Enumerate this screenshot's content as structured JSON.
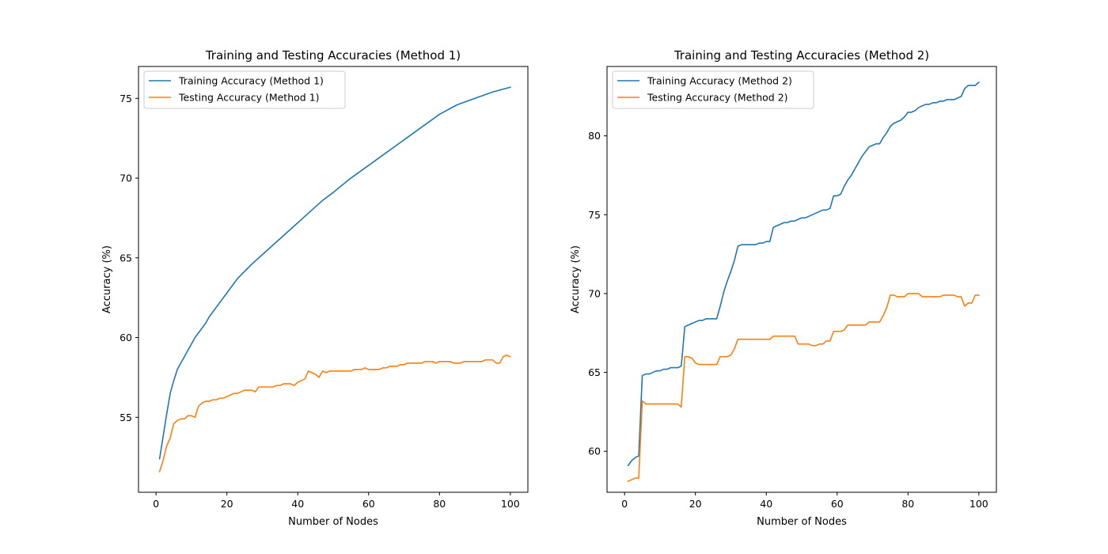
{
  "chart_data": [
    {
      "type": "line",
      "title": "Training and Testing Accuracies (Method 1)",
      "xlabel": "Number of Nodes",
      "ylabel": "Accuracy (%)",
      "xlim": [
        -4.95,
        104.95
      ],
      "ylim": [
        50.3,
        77.0
      ],
      "xticks": [
        0,
        20,
        40,
        60,
        80,
        100
      ],
      "yticks": [
        55,
        60,
        65,
        70,
        75
      ],
      "legend_position": "top-left",
      "series": [
        {
          "name": "Training Accuracy (Method 1)",
          "color": "#1f77b4",
          "x": [
            1,
            2,
            3,
            4,
            5,
            6,
            7,
            8,
            9,
            10,
            11,
            12,
            13,
            14,
            15,
            17,
            20,
            23,
            27,
            30,
            35,
            40,
            45,
            47,
            50,
            55,
            60,
            65,
            70,
            75,
            80,
            85,
            90,
            95,
            100
          ],
          "y": [
            52.4,
            53.8,
            55.2,
            56.5,
            57.3,
            58.0,
            58.4,
            58.8,
            59.2,
            59.6,
            60.0,
            60.3,
            60.6,
            60.9,
            61.3,
            61.9,
            62.8,
            63.7,
            64.6,
            65.2,
            66.2,
            67.2,
            68.2,
            68.6,
            69.1,
            70.0,
            70.8,
            71.6,
            72.4,
            73.2,
            74.0,
            74.6,
            75.0,
            75.4,
            75.7
          ]
        },
        {
          "name": "Testing Accuracy (Method 1)",
          "color": "#ff7f0e",
          "x": [
            1,
            2,
            3,
            4,
            5,
            6,
            7,
            8,
            9,
            10,
            11,
            12,
            13,
            14,
            15,
            16,
            17,
            18,
            19,
            20,
            21,
            22,
            23,
            24,
            25,
            26,
            27,
            28,
            29,
            30,
            31,
            32,
            33,
            34,
            35,
            36,
            37,
            38,
            39,
            40,
            41,
            42,
            43,
            44,
            45,
            46,
            47,
            48,
            49,
            50,
            51,
            52,
            53,
            54,
            55,
            56,
            57,
            58,
            59,
            60,
            61,
            62,
            63,
            64,
            65,
            66,
            67,
            68,
            69,
            70,
            71,
            72,
            73,
            74,
            75,
            76,
            77,
            78,
            79,
            80,
            81,
            82,
            83,
            84,
            85,
            86,
            87,
            88,
            89,
            90,
            91,
            92,
            93,
            94,
            95,
            96,
            97,
            98,
            99,
            100
          ],
          "y": [
            51.6,
            52.3,
            53.2,
            53.7,
            54.6,
            54.8,
            54.9,
            54.9,
            55.1,
            55.1,
            55.0,
            55.7,
            55.9,
            56.0,
            56.0,
            56.1,
            56.1,
            56.2,
            56.2,
            56.3,
            56.4,
            56.5,
            56.5,
            56.6,
            56.7,
            56.7,
            56.7,
            56.6,
            56.9,
            56.9,
            56.9,
            56.9,
            56.9,
            57.0,
            57.0,
            57.1,
            57.1,
            57.1,
            57.0,
            57.2,
            57.3,
            57.4,
            57.9,
            57.8,
            57.7,
            57.5,
            57.9,
            57.8,
            57.9,
            57.9,
            57.9,
            57.9,
            57.9,
            57.9,
            57.9,
            58.0,
            58.0,
            58.0,
            58.1,
            58.0,
            58.0,
            58.0,
            58.0,
            58.1,
            58.1,
            58.2,
            58.2,
            58.2,
            58.3,
            58.3,
            58.4,
            58.4,
            58.4,
            58.4,
            58.4,
            58.5,
            58.5,
            58.5,
            58.4,
            58.5,
            58.5,
            58.5,
            58.5,
            58.4,
            58.4,
            58.4,
            58.5,
            58.5,
            58.5,
            58.5,
            58.5,
            58.5,
            58.6,
            58.6,
            58.6,
            58.4,
            58.4,
            58.8,
            58.9,
            58.8
          ]
        }
      ]
    },
    {
      "type": "line",
      "title": "Training and Testing Accuracies (Method 2)",
      "xlabel": "Number of Nodes",
      "ylabel": "Accuracy (%)",
      "xlim": [
        -4.95,
        104.95
      ],
      "ylim": [
        57.4,
        84.4
      ],
      "xticks": [
        0,
        20,
        40,
        60,
        80,
        100
      ],
      "yticks": [
        60,
        65,
        70,
        75,
        80
      ],
      "legend_position": "top-left",
      "series": [
        {
          "name": "Training Accuracy (Method 2)",
          "color": "#1f77b4",
          "x": [
            1,
            2,
            3,
            4,
            5,
            6,
            7,
            8,
            9,
            10,
            11,
            12,
            13,
            14,
            15,
            16,
            17,
            18,
            19,
            20,
            21,
            22,
            23,
            24,
            25,
            26,
            27,
            28,
            29,
            30,
            31,
            32,
            33,
            34,
            35,
            36,
            37,
            38,
            39,
            40,
            41,
            42,
            43,
            44,
            45,
            46,
            47,
            48,
            49,
            50,
            51,
            52,
            53,
            54,
            55,
            56,
            57,
            58,
            59,
            60,
            61,
            62,
            63,
            64,
            65,
            66,
            67,
            68,
            69,
            70,
            71,
            72,
            73,
            74,
            75,
            76,
            77,
            78,
            79,
            80,
            81,
            82,
            83,
            84,
            85,
            86,
            87,
            88,
            89,
            90,
            91,
            92,
            93,
            94,
            95,
            96,
            97,
            98,
            99,
            100
          ],
          "y": [
            59.1,
            59.4,
            59.6,
            59.7,
            64.8,
            64.9,
            64.9,
            65.0,
            65.1,
            65.1,
            65.2,
            65.2,
            65.3,
            65.3,
            65.3,
            65.4,
            67.9,
            68.0,
            68.1,
            68.2,
            68.3,
            68.3,
            68.4,
            68.4,
            68.4,
            68.4,
            69.2,
            70.1,
            70.8,
            71.4,
            72.1,
            73.0,
            73.1,
            73.1,
            73.1,
            73.1,
            73.1,
            73.2,
            73.2,
            73.3,
            73.3,
            74.2,
            74.3,
            74.4,
            74.5,
            74.5,
            74.6,
            74.6,
            74.7,
            74.8,
            74.8,
            74.9,
            75.0,
            75.1,
            75.2,
            75.3,
            75.3,
            75.4,
            76.2,
            76.2,
            76.3,
            76.8,
            77.2,
            77.5,
            77.9,
            78.3,
            78.7,
            79.0,
            79.3,
            79.4,
            79.5,
            79.5,
            79.9,
            80.2,
            80.6,
            80.8,
            80.9,
            81.0,
            81.2,
            81.5,
            81.5,
            81.6,
            81.8,
            81.9,
            82.0,
            82.0,
            82.1,
            82.1,
            82.2,
            82.2,
            82.3,
            82.3,
            82.3,
            82.4,
            82.5,
            83.0,
            83.2,
            83.2,
            83.2,
            83.4
          ]
        },
        {
          "name": "Testing Accuracy (Method 2)",
          "color": "#ff7f0e",
          "x": [
            1,
            2,
            3,
            4,
            5,
            6,
            7,
            8,
            9,
            10,
            11,
            12,
            13,
            14,
            15,
            16,
            17,
            18,
            19,
            20,
            21,
            22,
            23,
            24,
            25,
            26,
            27,
            28,
            29,
            30,
            31,
            32,
            33,
            34,
            35,
            36,
            37,
            38,
            39,
            40,
            41,
            42,
            43,
            44,
            45,
            46,
            47,
            48,
            49,
            50,
            51,
            52,
            53,
            54,
            55,
            56,
            57,
            58,
            59,
            60,
            61,
            62,
            63,
            64,
            65,
            66,
            67,
            68,
            69,
            70,
            71,
            72,
            73,
            74,
            75,
            76,
            77,
            78,
            79,
            80,
            81,
            82,
            83,
            84,
            85,
            86,
            87,
            88,
            89,
            90,
            91,
            92,
            93,
            94,
            95,
            96,
            97,
            98,
            99,
            100
          ],
          "y": [
            58.1,
            58.2,
            58.3,
            58.3,
            63.2,
            63.0,
            63.0,
            63.0,
            63.0,
            63.0,
            63.0,
            63.0,
            63.0,
            63.0,
            63.0,
            62.8,
            66.0,
            66.0,
            65.9,
            65.6,
            65.5,
            65.5,
            65.5,
            65.5,
            65.5,
            65.5,
            66.0,
            66.0,
            66.0,
            66.1,
            66.5,
            67.1,
            67.1,
            67.1,
            67.1,
            67.1,
            67.1,
            67.1,
            67.1,
            67.1,
            67.1,
            67.3,
            67.3,
            67.3,
            67.3,
            67.3,
            67.3,
            67.3,
            66.8,
            66.8,
            66.8,
            66.8,
            66.7,
            66.7,
            66.8,
            66.8,
            67.0,
            67.0,
            67.6,
            67.6,
            67.6,
            67.7,
            68.0,
            68.0,
            68.0,
            68.0,
            68.0,
            68.0,
            68.2,
            68.2,
            68.2,
            68.2,
            68.6,
            69.1,
            69.9,
            69.9,
            69.8,
            69.8,
            69.8,
            70.0,
            70.0,
            70.0,
            70.0,
            69.8,
            69.8,
            69.8,
            69.8,
            69.8,
            69.8,
            69.9,
            69.9,
            69.9,
            69.9,
            69.8,
            69.8,
            69.2,
            69.4,
            69.4,
            69.9,
            69.9
          ]
        }
      ]
    }
  ]
}
